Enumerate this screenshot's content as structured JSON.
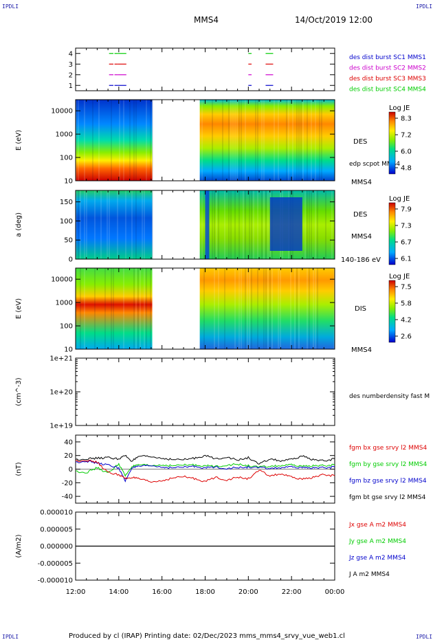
{
  "corners": {
    "tl": "IPDLI",
    "tr": "IPDLI",
    "bl": "IPDLI",
    "br": "IPDLI"
  },
  "header": {
    "spacecraft": "MMS4",
    "date": "14/Oct/2019 12:00"
  },
  "footer": {
    "text": "Produced by cl (IRAP)   Printing date: 02/Dec/2023   mms_mms4_srvy_vue_web1.cl"
  },
  "colors": {
    "bx": "#dd0000",
    "by": "#00cc00",
    "bz": "#0000cc",
    "bt": "#000000"
  },
  "chart_data": [
    {
      "type": "scatter",
      "panel": "burst-availability",
      "ylim": [
        0.5,
        4.5
      ],
      "yticks": [
        "4",
        "3",
        "2",
        "1"
      ],
      "legend": [
        {
          "label": "des dist burst SC1 MMS1",
          "color": "#0000cc",
          "y": 1
        },
        {
          "label": "des dist burst SC2 MMS2",
          "color": "#cc00cc",
          "y": 2
        },
        {
          "label": "des dist burst SC3 MMS3",
          "color": "#dd0000",
          "y": 3
        },
        {
          "label": "des dist burst SC4 MMS4",
          "color": "#00cc00",
          "y": 4
        }
      ],
      "intervals": [
        [
          13.55,
          13.75
        ],
        [
          13.8,
          13.95
        ],
        [
          13.95,
          14.35
        ],
        [
          20.0,
          20.15
        ],
        [
          20.8,
          21.15
        ]
      ]
    },
    {
      "type": "heatmap",
      "panel": "des-energy",
      "ylabel": "E (eV)",
      "ylim": [
        10,
        30000
      ],
      "yscale": "log",
      "yticks": [
        "10000",
        "1000",
        "100",
        "10"
      ],
      "side_labels": [
        "DES",
        "edp scpot MMS4",
        "MMS4"
      ],
      "colorbar": {
        "title": "Log JE",
        "ticks": [
          "8.3",
          "7.2",
          "6.0",
          "4.8"
        ]
      },
      "gap": [
        15.55,
        17.75
      ]
    },
    {
      "type": "heatmap",
      "panel": "des-pitch-angle",
      "ylabel": "a (deg)",
      "ylim": [
        0,
        180
      ],
      "yticks": [
        "150",
        "100",
        "50",
        "0"
      ],
      "side_labels": [
        "DES",
        "MMS4",
        "140-186 eV"
      ],
      "colorbar": {
        "title": "Log JE",
        "ticks": [
          "7.9",
          "7.3",
          "6.7",
          "6.1"
        ]
      },
      "gap": [
        15.55,
        17.75
      ]
    },
    {
      "type": "heatmap",
      "panel": "dis-energy",
      "ylabel": "E (eV)",
      "ylim": [
        10,
        30000
      ],
      "yscale": "log",
      "yticks": [
        "10000",
        "1000",
        "100",
        "10"
      ],
      "side_labels": [
        "DIS",
        "MMS4"
      ],
      "colorbar": {
        "title": "Log JE",
        "ticks": [
          "7.5",
          "5.8",
          "4.2",
          "2.6"
        ]
      },
      "gap": [
        15.55,
        17.75
      ]
    },
    {
      "type": "line",
      "panel": "density",
      "ylabel": "(cm^-3)",
      "ylim": [
        1e+19,
        1e+21
      ],
      "yscale": "log",
      "yticks": [
        "1e+21",
        "1e+20",
        "1e+19"
      ],
      "legend": [
        "des numberdensity fast M"
      ]
    },
    {
      "type": "line",
      "panel": "magnetic-field",
      "ylabel": "(nT)",
      "ylim": [
        -50,
        50
      ],
      "yticks": [
        "40",
        "20",
        "0",
        "-20",
        "-40"
      ],
      "legend": [
        {
          "label": "fgm bx gse srvy l2 MMS4",
          "color": "#dd0000"
        },
        {
          "label": "fgm by gse srvy l2 MMS4",
          "color": "#00cc00"
        },
        {
          "label": "fgm bz gse srvy l2 MMS4",
          "color": "#0000cc"
        },
        {
          "label": "fgm bt gse srvy l2 MMS4",
          "color": "#000000"
        }
      ],
      "series": [
        {
          "key": "bt",
          "color": "#000000",
          "x": [
            12.0,
            12.5,
            13.0,
            13.5,
            14.0,
            14.3,
            14.6,
            15.0,
            15.5,
            16.0,
            16.5,
            17.0,
            17.5,
            18.0,
            18.5,
            19.0,
            19.5,
            20.0,
            20.5,
            21.0,
            21.5,
            22.0,
            22.5,
            23.0,
            23.5,
            24.0
          ],
          "y": [
            14,
            15,
            16,
            17,
            15,
            20,
            12,
            19,
            18,
            16,
            14,
            14,
            16,
            20,
            15,
            18,
            13,
            17,
            7,
            15,
            12,
            14,
            19,
            14,
            12,
            15
          ]
        },
        {
          "key": "by",
          "color": "#00cc00",
          "x": [
            12.0,
            12.5,
            13.0,
            13.5,
            14.0,
            14.3,
            14.6,
            15.0,
            15.5,
            16.0,
            16.5,
            17.0,
            17.5,
            18.0,
            18.5,
            19.0,
            19.5,
            20.0,
            20.5,
            21.0,
            21.5,
            22.0,
            22.5,
            23.0,
            23.5,
            24.0
          ],
          "y": [
            -3,
            -5,
            2,
            -6,
            8,
            -10,
            4,
            6,
            5,
            6,
            5,
            6,
            6,
            5,
            4,
            6,
            7,
            5,
            3,
            4,
            5,
            6,
            4,
            5,
            5,
            6
          ]
        },
        {
          "key": "bz",
          "color": "#0000cc",
          "x": [
            12.0,
            12.5,
            13.0,
            13.5,
            14.0,
            14.3,
            14.6,
            15.0,
            15.5,
            16.0,
            16.5,
            17.0,
            17.5,
            18.0,
            18.5,
            19.0,
            19.5,
            20.0,
            20.5,
            21.0,
            21.5,
            22.0,
            22.5,
            23.0,
            23.5,
            24.0
          ],
          "y": [
            10,
            12,
            9,
            6,
            2,
            -18,
            2,
            4,
            5,
            3,
            2,
            3,
            4,
            2,
            3,
            1,
            2,
            3,
            2,
            1,
            2,
            3,
            2,
            2,
            2,
            3
          ]
        },
        {
          "key": "bx",
          "color": "#dd0000",
          "x": [
            12.0,
            12.5,
            13.0,
            13.5,
            14.0,
            14.3,
            14.6,
            15.0,
            15.5,
            16.0,
            16.5,
            17.0,
            17.5,
            18.0,
            18.5,
            19.0,
            19.5,
            20.0,
            20.5,
            21.0,
            21.5,
            22.0,
            22.5,
            23.0,
            23.5,
            24.0
          ],
          "y": [
            12,
            13,
            10,
            -5,
            -8,
            -14,
            -12,
            -15,
            -19,
            -17,
            -13,
            -11,
            -14,
            -18,
            -12,
            -16,
            -12,
            -14,
            -2,
            -10,
            -7,
            -12,
            -15,
            -12,
            -8,
            -10
          ]
        }
      ]
    },
    {
      "type": "line",
      "panel": "current-density",
      "ylabel": "(A/m2)",
      "ylim": [
        -1e-05,
        1e-05
      ],
      "yticks": [
        "0.000010",
        "0.000005",
        "0.000000",
        "-0.000005",
        "-0.000010"
      ],
      "legend": [
        {
          "label": "Jx gse A m2 MMS4",
          "color": "#dd0000"
        },
        {
          "label": "Jy gse A m2 MMS4",
          "color": "#00cc00"
        },
        {
          "label": "Jz gse A m2 MMS4",
          "color": "#0000cc"
        },
        {
          "label": "J A m2 MMS4",
          "color": "#000000"
        }
      ]
    }
  ],
  "time_axis": {
    "ticks": [
      "12:00",
      "14:00",
      "16:00",
      "18:00",
      "20:00",
      "22:00",
      "00:00"
    ]
  }
}
